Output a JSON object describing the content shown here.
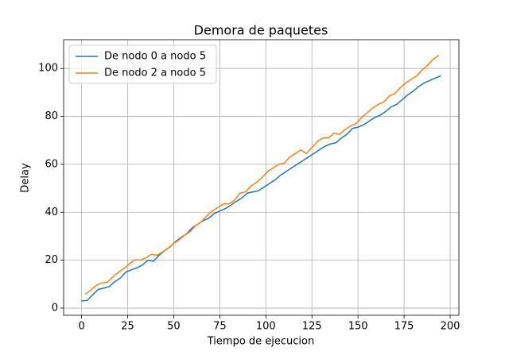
{
  "chart_data": {
    "type": "line",
    "title": "Demora de paquetes",
    "xlabel": "Tiempo de ejecucion",
    "ylabel": "Delay",
    "xlim": [
      -9.75,
      204.75
    ],
    "ylim": [
      -3,
      112
    ],
    "xticks": [
      0,
      25,
      50,
      75,
      100,
      125,
      150,
      175,
      200
    ],
    "yticks": [
      0,
      20,
      40,
      60,
      80,
      100
    ],
    "grid": true,
    "legend": "upper left",
    "series": [
      {
        "name": "De nodo 0 a nodo 5",
        "color": "#1f77b4",
        "x": [
          0,
          3,
          6,
          9,
          12,
          15,
          18,
          21,
          24,
          27,
          30,
          33,
          36,
          39,
          42,
          45,
          48,
          51,
          54,
          57,
          60,
          63,
          66,
          69,
          72,
          75,
          78,
          81,
          84,
          87,
          90,
          93,
          96,
          99,
          102,
          105,
          108,
          111,
          114,
          117,
          120,
          123,
          126,
          129,
          132,
          135,
          138,
          141,
          144,
          147,
          150,
          153,
          156,
          159,
          162,
          165,
          168,
          171,
          174,
          177,
          180,
          183,
          186,
          189,
          192,
          195
        ],
        "values": [
          3,
          3.2,
          5.5,
          7.8,
          8.3,
          9,
          11,
          12.5,
          15,
          16,
          16.8,
          18,
          20,
          19.5,
          22,
          24,
          25.5,
          27.8,
          29.5,
          31,
          33.5,
          35,
          36.5,
          37.5,
          39.5,
          40.5,
          41.5,
          43,
          44.5,
          46,
          48,
          48.5,
          49,
          50.5,
          52,
          53.5,
          55.5,
          57,
          58.5,
          60,
          61.5,
          63,
          64.5,
          66,
          67.5,
          68.5,
          69,
          71,
          72.5,
          75,
          75.5,
          76.5,
          78,
          79.5,
          80.5,
          82,
          84,
          85,
          87,
          89,
          90.5,
          92.5,
          94,
          95,
          96,
          97
        ]
      },
      {
        "name": "De nodo 2 a nodo 5",
        "color": "#ff7f0e",
        "x": [
          2,
          5,
          8,
          11,
          14,
          17,
          20,
          23,
          26,
          29,
          32,
          35,
          38,
          41,
          44,
          47,
          50,
          53,
          56,
          59,
          62,
          65,
          68,
          71,
          74,
          77,
          80,
          83,
          86,
          89,
          92,
          95,
          98,
          101,
          104,
          107,
          110,
          113,
          116,
          119,
          122,
          125,
          128,
          131,
          134,
          137,
          140,
          143,
          146,
          149,
          152,
          155,
          158,
          161,
          164,
          167,
          170,
          173,
          176,
          179,
          182,
          185,
          188,
          191,
          194
        ],
        "values": [
          5.8,
          7.5,
          9.5,
          10.5,
          10.8,
          13,
          15,
          16.5,
          18.5,
          20.2,
          20,
          21,
          22.5,
          22,
          23.5,
          25,
          27,
          28.5,
          30.5,
          32,
          34.5,
          36,
          38.5,
          40.5,
          42,
          43.5,
          43.5,
          45,
          48,
          48.5,
          51,
          52.5,
          54.5,
          57,
          58.5,
          60,
          60.5,
          63,
          64.5,
          66,
          64.5,
          67,
          69.5,
          71,
          71,
          73,
          72.5,
          74.5,
          76,
          77,
          79.5,
          81.5,
          83.5,
          85,
          86,
          88.5,
          89.5,
          92,
          94,
          95.5,
          97,
          99.5,
          101.5,
          104,
          105.5
        ]
      }
    ]
  }
}
